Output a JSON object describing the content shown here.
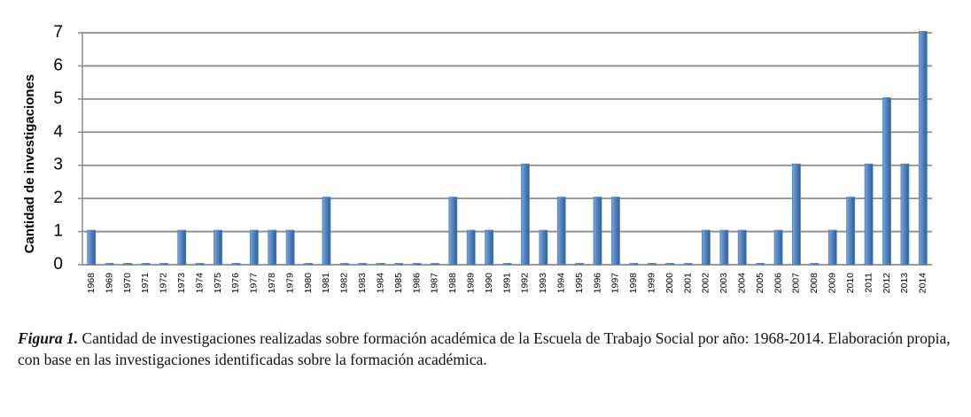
{
  "chart_data": {
    "type": "bar",
    "y_label": "Cantidad  de investigaciones",
    "categories": [
      "1968",
      "1969",
      "1970",
      "1971",
      "1972",
      "1973",
      "1974",
      "1975",
      "1976",
      "1977",
      "1978",
      "1979",
      "1980",
      "1981",
      "1982",
      "1983",
      "1984",
      "1985",
      "1986",
      "1987",
      "1988",
      "1989",
      "1990",
      "1991",
      "1992",
      "1993",
      "1994",
      "1995",
      "1996",
      "1997",
      "1998",
      "1999",
      "2000",
      "2001",
      "2002",
      "2003",
      "2004",
      "2005",
      "2006",
      "2007",
      "2008",
      "2009",
      "2010",
      "2011",
      "2012",
      "2013",
      "2014"
    ],
    "values": [
      1,
      0,
      0,
      0,
      0,
      1,
      0,
      1,
      0,
      1,
      1,
      1,
      0,
      2,
      0,
      0,
      0,
      0,
      0,
      0,
      2,
      1,
      1,
      0,
      3,
      1,
      2,
      0,
      2,
      2,
      0,
      0,
      0,
      0,
      1,
      1,
      1,
      0,
      1,
      3,
      0,
      1,
      2,
      3,
      5,
      3,
      7
    ],
    "color": "#4f81bd",
    "ylim": [
      0,
      7
    ],
    "yticks": [
      0,
      1,
      2,
      3,
      4,
      5,
      6,
      7
    ],
    "grid": true,
    "caption": {
      "label": "Figura 1.",
      "text": "Cantidad de investigaciones realizadas sobre formación académica de la Escuela de Trabajo Social por año: 1968-2014. Elaboración propia, con base en las investigaciones identificadas sobre la formación académica."
    }
  }
}
